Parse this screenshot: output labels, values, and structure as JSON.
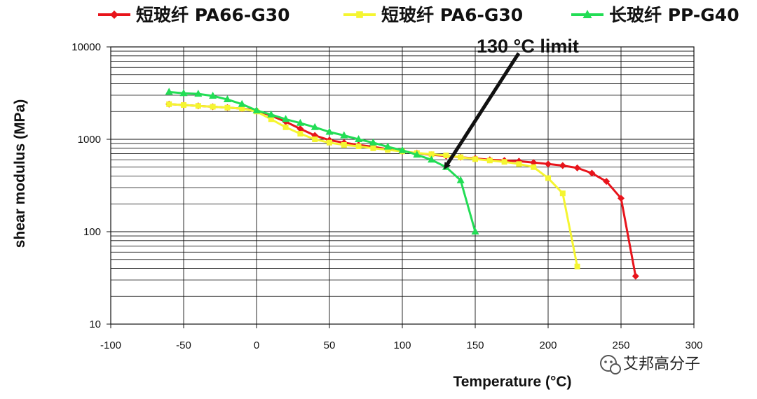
{
  "chart_data": {
    "type": "line",
    "yscale": "log",
    "xlabel": "Temperature (°C)",
    "ylabel": "shear modulus (MPa)",
    "xlim": [
      -100,
      300
    ],
    "ylim": [
      10,
      10000
    ],
    "x_ticks": [
      "-100",
      "-50",
      "0",
      "50",
      "100",
      "150",
      "200",
      "250",
      "300"
    ],
    "y_ticks": [
      "10",
      "100",
      "1000",
      "10000"
    ],
    "grid": "major and minor (log) horizontal, major vertical",
    "legend_position": "top",
    "annotation": {
      "text": "130 °C limit",
      "points_to": {
        "x": 128,
        "y": 450
      }
    },
    "series": [
      {
        "name": "短玻纤 PA66-G30",
        "color": "#e8141b",
        "marker": "diamond",
        "x": [
          -60,
          -50,
          -40,
          -30,
          -20,
          -10,
          0,
          10,
          20,
          30,
          40,
          50,
          60,
          70,
          80,
          90,
          100,
          110,
          120,
          130,
          140,
          150,
          160,
          170,
          180,
          190,
          200,
          210,
          220,
          230,
          240,
          250,
          260
        ],
        "y": [
          2400,
          2350,
          2300,
          2250,
          2200,
          2150,
          2050,
          1800,
          1550,
          1300,
          1100,
          980,
          920,
          870,
          830,
          780,
          740,
          710,
          680,
          660,
          640,
          620,
          600,
          590,
          580,
          560,
          540,
          520,
          490,
          430,
          350,
          230,
          33
        ]
      },
      {
        "name": "短玻纤 PA6-G30",
        "color": "#f5f531",
        "marker": "square",
        "x": [
          -60,
          -50,
          -40,
          -30,
          -20,
          -10,
          0,
          10,
          20,
          30,
          40,
          50,
          60,
          70,
          80,
          90,
          100,
          110,
          120,
          130,
          140,
          150,
          160,
          170,
          180,
          190,
          200,
          210,
          220
        ],
        "y": [
          2400,
          2350,
          2300,
          2250,
          2200,
          2150,
          2000,
          1650,
          1350,
          1150,
          1000,
          920,
          870,
          840,
          800,
          770,
          740,
          710,
          690,
          670,
          640,
          610,
          590,
          570,
          540,
          500,
          380,
          260,
          42
        ]
      },
      {
        "name": "长玻纤 PP-G40",
        "color": "#22dd55",
        "marker": "triangle",
        "x": [
          -60,
          -50,
          -40,
          -30,
          -20,
          -10,
          0,
          10,
          20,
          30,
          40,
          50,
          60,
          70,
          80,
          90,
          100,
          110,
          120,
          130,
          140,
          150
        ],
        "y": [
          3250,
          3150,
          3100,
          2950,
          2700,
          2400,
          2050,
          1850,
          1650,
          1500,
          1350,
          1200,
          1100,
          1000,
          920,
          830,
          760,
          680,
          600,
          500,
          360,
          100
        ]
      }
    ]
  },
  "watermark": {
    "icon": "wechat-icon",
    "text": "艾邦高分子"
  }
}
